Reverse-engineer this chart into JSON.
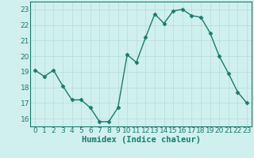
{
  "x": [
    0,
    1,
    2,
    3,
    4,
    5,
    6,
    7,
    8,
    9,
    10,
    11,
    12,
    13,
    14,
    15,
    16,
    17,
    18,
    19,
    20,
    21,
    22,
    23
  ],
  "y": [
    19.1,
    18.7,
    19.1,
    18.1,
    17.2,
    17.2,
    16.7,
    15.8,
    15.8,
    16.7,
    20.1,
    19.6,
    21.2,
    22.7,
    22.1,
    22.9,
    23.0,
    22.6,
    22.5,
    21.5,
    20.0,
    18.9,
    17.7,
    17.0
  ],
  "color": "#1a7a6e",
  "bg_color": "#cff0ee",
  "grid_color": "#b8dbd9",
  "xlabel": "Humidex (Indice chaleur)",
  "ylim": [
    15.5,
    23.5
  ],
  "xlim": [
    -0.5,
    23.5
  ],
  "yticks": [
    16,
    17,
    18,
    19,
    20,
    21,
    22,
    23
  ],
  "xticks": [
    0,
    1,
    2,
    3,
    4,
    5,
    6,
    7,
    8,
    9,
    10,
    11,
    12,
    13,
    14,
    15,
    16,
    17,
    18,
    19,
    20,
    21,
    22,
    23
  ],
  "marker": "D",
  "markersize": 2.5,
  "linewidth": 1.0,
  "xlabel_fontsize": 7.5,
  "tick_fontsize": 6.5
}
